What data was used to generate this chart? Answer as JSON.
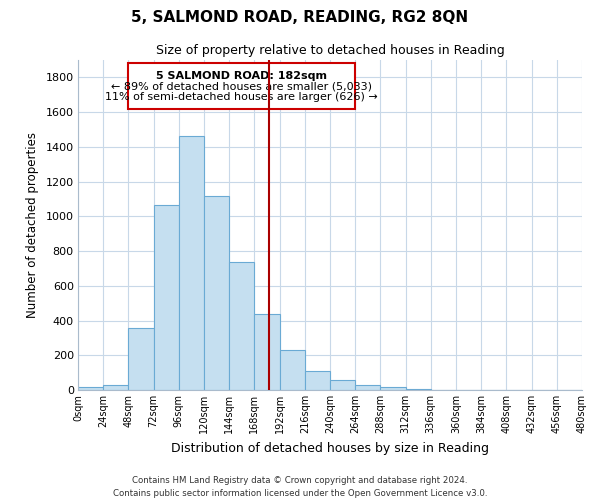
{
  "title": "5, SALMOND ROAD, READING, RG2 8QN",
  "subtitle": "Size of property relative to detached houses in Reading",
  "xlabel": "Distribution of detached houses by size in Reading",
  "ylabel": "Number of detached properties",
  "bar_color": "#c5dff0",
  "bar_edge_color": "#6aaad4",
  "bin_edges": [
    0,
    24,
    48,
    72,
    96,
    120,
    144,
    168,
    192,
    216,
    240,
    264,
    288,
    312,
    336,
    360,
    384,
    408,
    432,
    456,
    480
  ],
  "bar_heights": [
    15,
    30,
    355,
    1065,
    1460,
    1115,
    735,
    440,
    230,
    110,
    55,
    30,
    15,
    5,
    2,
    1,
    0,
    0,
    0,
    0
  ],
  "tick_labels": [
    "0sqm",
    "24sqm",
    "48sqm",
    "72sqm",
    "96sqm",
    "120sqm",
    "144sqm",
    "168sqm",
    "192sqm",
    "216sqm",
    "240sqm",
    "264sqm",
    "288sqm",
    "312sqm",
    "336sqm",
    "360sqm",
    "384sqm",
    "408sqm",
    "432sqm",
    "456sqm",
    "480sqm"
  ],
  "ylim": [
    0,
    1900
  ],
  "yticks": [
    0,
    200,
    400,
    600,
    800,
    1000,
    1200,
    1400,
    1600,
    1800
  ],
  "vline_x": 182,
  "vline_color": "#aa0000",
  "annotation_title": "5 SALMOND ROAD: 182sqm",
  "annotation_line1": "← 89% of detached houses are smaller (5,033)",
  "annotation_line2": "11% of semi-detached houses are larger (626) →",
  "annotation_box_color": "#ffffff",
  "annotation_box_edge": "#cc0000",
  "footer_line1": "Contains HM Land Registry data © Crown copyright and database right 2024.",
  "footer_line2": "Contains public sector information licensed under the Open Government Licence v3.0.",
  "background_color": "#ffffff",
  "grid_color": "#c8d8e8"
}
